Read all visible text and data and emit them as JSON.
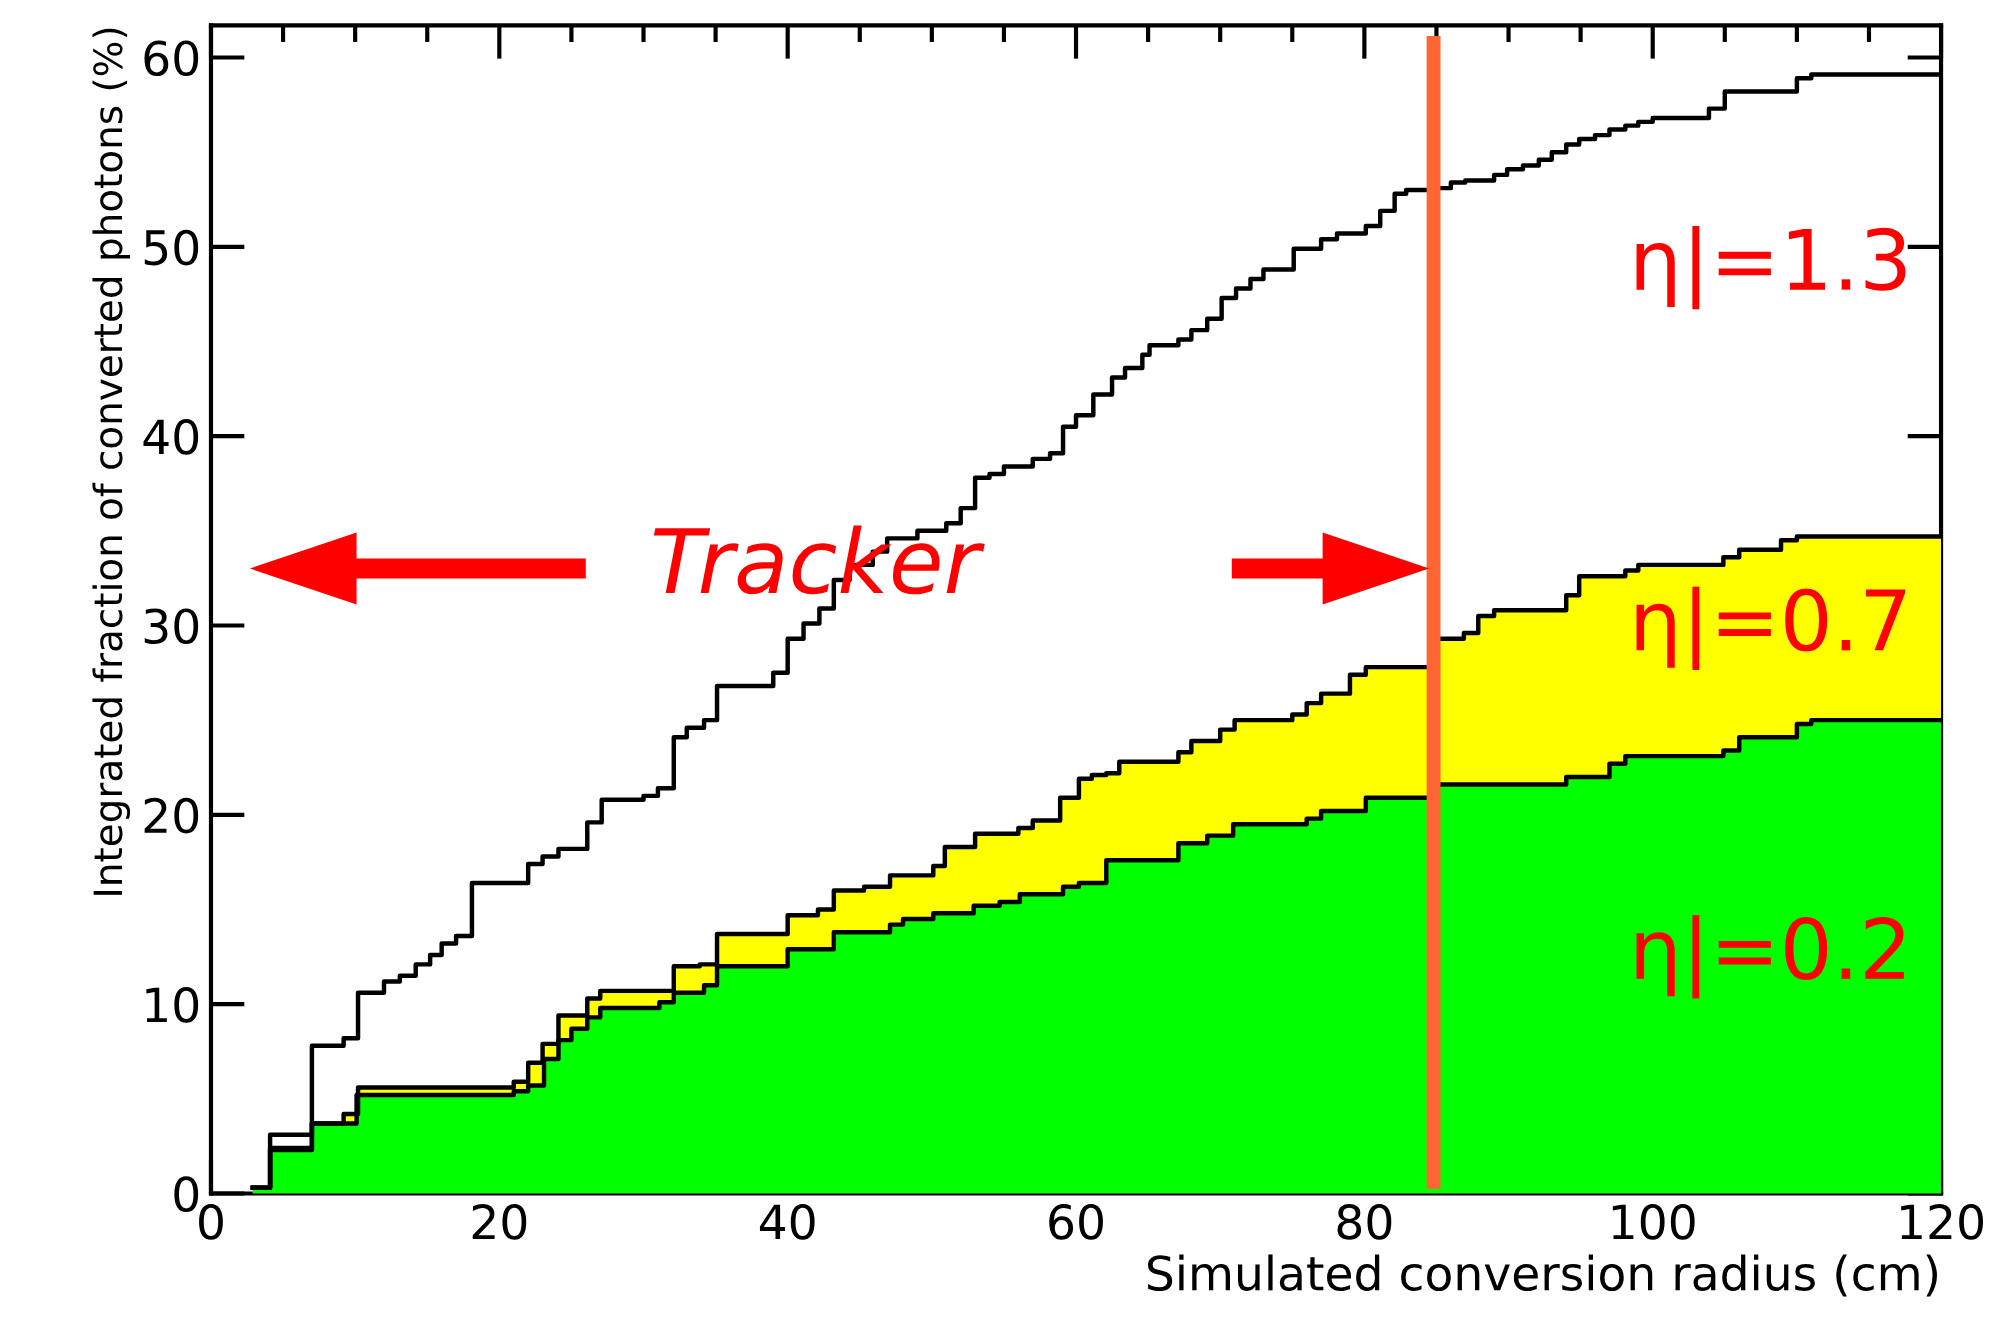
{
  "chart_data": {
    "type": "line",
    "xlabel": "Simulated conversion radius (cm)",
    "ylabel": "Integrated fraction of converted photons (%)",
    "xlim": [
      0,
      120
    ],
    "xticks": [
      0,
      20,
      40,
      60,
      80,
      100,
      120
    ],
    "ylim": [
      0,
      61.7
    ],
    "yticks": [
      0,
      10,
      20,
      30,
      40,
      50,
      60
    ],
    "grid": false,
    "series": [
      {
        "color": "#000000",
        "x": [
          2.9,
          4.1,
          4.1,
          7.0,
          7.0,
          9.2,
          9.2,
          10.2,
          10.2,
          12.0,
          12.0,
          13.1,
          13.1,
          14.2,
          14.2,
          15.2,
          15.2,
          16.0,
          16.0,
          17.0,
          17.0,
          18.1,
          18.1,
          22.0,
          22.0,
          23.0,
          23.0,
          24.1,
          24.1,
          26.1,
          26.1,
          27.1,
          27.1,
          30.0,
          30.0,
          31.0,
          31.0,
          32.1,
          32.1,
          33.0,
          33.0,
          34.2,
          34.2,
          35.1,
          35.1,
          39.0,
          39.0,
          40.0,
          40.0,
          41.1,
          41.1,
          42.2,
          42.2,
          43.2,
          43.2,
          44.3,
          44.3,
          45.9,
          45.9,
          46.9,
          46.9,
          49.0,
          49.0,
          51.0,
          51.0,
          52.0,
          52.0,
          53.0,
          53.0,
          54.0,
          54.0,
          55.0,
          55.0,
          57.0,
          57.0,
          58.2,
          58.2,
          59.1,
          59.1,
          60.0,
          60.0,
          61.2,
          61.2,
          62.5,
          62.5,
          63.4,
          63.4,
          64.6,
          64.6,
          65.1,
          65.1,
          67.1,
          67.1,
          68.0,
          68.0,
          69.1,
          69.1,
          70.1,
          70.1,
          71.1,
          71.1,
          72.1,
          72.1,
          73.0,
          73.0,
          75.1,
          75.1,
          77.0,
          77.0,
          78.1,
          78.1,
          80.1,
          80.1,
          81.1,
          81.1,
          82.1,
          82.1,
          82.9,
          82.9,
          84.8,
          84.8,
          86.0,
          86.0,
          87.0,
          87.0,
          89.0,
          89.0,
          89.9,
          89.9,
          91.0,
          91.0,
          92.1,
          92.1,
          93.0,
          93.0,
          94.0,
          94.0,
          94.9,
          94.9,
          96.0,
          96.0,
          97.0,
          97.0,
          98.1,
          98.1,
          99.0,
          99.0,
          100.0,
          100.0,
          103.9,
          103.9,
          105.0,
          105.0,
          110.0,
          110.0,
          111.0,
          111.0,
          120.0
        ],
        "values": [
          0.3,
          0.3,
          3.1,
          3.1,
          7.8,
          7.8,
          8.2,
          8.2,
          10.6,
          10.6,
          11.2,
          11.2,
          11.5,
          11.5,
          12.1,
          12.1,
          12.6,
          12.6,
          13.2,
          13.2,
          13.6,
          13.6,
          16.4,
          16.4,
          17.4,
          17.4,
          17.8,
          17.8,
          18.2,
          18.2,
          19.6,
          19.6,
          20.8,
          20.8,
          21.0,
          21.0,
          21.4,
          21.4,
          24.1,
          24.1,
          24.6,
          24.6,
          25.0,
          25.0,
          26.8,
          26.8,
          27.5,
          27.5,
          29.3,
          29.3,
          30.1,
          30.1,
          30.9,
          30.9,
          32.4,
          32.4,
          33.2,
          33.2,
          33.9,
          33.9,
          34.6,
          34.6,
          35.0,
          35.0,
          35.4,
          35.4,
          36.2,
          36.2,
          37.8,
          37.8,
          38.0,
          38.0,
          38.4,
          38.4,
          38.8,
          38.8,
          39.1,
          39.1,
          40.5,
          40.5,
          41.1,
          41.1,
          42.2,
          42.2,
          43.1,
          43.1,
          43.6,
          43.6,
          44.3,
          44.3,
          44.8,
          44.8,
          45.1,
          45.1,
          45.6,
          45.6,
          46.2,
          46.2,
          47.3,
          47.3,
          47.8,
          47.8,
          48.3,
          48.3,
          48.8,
          48.8,
          49.9,
          49.9,
          50.4,
          50.4,
          50.7,
          50.7,
          51.1,
          51.1,
          51.9,
          51.9,
          52.8,
          52.8,
          53.0,
          53.0,
          53.1,
          53.1,
          53.4,
          53.4,
          53.5,
          53.5,
          53.8,
          53.8,
          54.1,
          54.1,
          54.3,
          54.3,
          54.6,
          54.6,
          55.0,
          55.0,
          55.4,
          55.4,
          55.7,
          55.7,
          55.9,
          55.9,
          56.2,
          56.2,
          56.4,
          56.4,
          56.6,
          56.6,
          56.8,
          56.8,
          57.3,
          57.3,
          58.2,
          58.2,
          58.9,
          58.9,
          59.1,
          59.1
        ]
      },
      {
        "type": "area",
        "color": "#ffff00",
        "x": [
          2.9,
          4.1,
          4.1,
          7.0,
          7.0,
          9.2,
          9.2,
          10.2,
          10.2,
          21.0,
          21.0,
          22.0,
          22.0,
          23.0,
          23.0,
          24.1,
          24.1,
          26.1,
          26.1,
          27.0,
          27.0,
          32.1,
          32.1,
          33.9,
          33.9,
          35.1,
          35.1,
          40.0,
          40.0,
          42.1,
          42.1,
          43.2,
          43.2,
          45.3,
          45.3,
          47.1,
          47.1,
          50.1,
          50.1,
          50.9,
          50.9,
          53.0,
          53.0,
          56.0,
          56.0,
          57.0,
          57.0,
          58.9,
          58.9,
          60.2,
          60.2,
          61.1,
          61.1,
          62.1,
          62.1,
          63.0,
          63.0,
          67.1,
          67.1,
          68.0,
          68.0,
          70.0,
          70.0,
          71.0,
          71.0,
          75.0,
          75.0,
          76.0,
          76.0,
          77.0,
          77.0,
          79.0,
          79.0,
          80.1,
          80.1,
          84.8,
          84.8,
          86.9,
          86.9,
          87.9,
          87.9,
          89.0,
          89.0,
          94.0,
          94.0,
          94.9,
          94.9,
          98.1,
          98.1,
          99.0,
          99.0,
          104.9,
          104.9,
          106.0,
          106.0,
          108.9,
          108.9,
          110.0,
          110.0,
          120.0
        ],
        "values": [
          0.3,
          0.3,
          2.4,
          2.4,
          3.7,
          3.7,
          4.2,
          4.2,
          5.6,
          5.6,
          5.9,
          5.9,
          6.9,
          6.9,
          7.9,
          7.9,
          9.4,
          9.4,
          10.3,
          10.3,
          10.7,
          10.7,
          12.0,
          12.0,
          12.1,
          12.1,
          13.7,
          13.7,
          14.7,
          14.7,
          15.0,
          15.0,
          16.0,
          16.0,
          16.2,
          16.2,
          16.8,
          16.8,
          17.3,
          17.3,
          18.3,
          18.3,
          19.0,
          19.0,
          19.3,
          19.3,
          19.7,
          19.7,
          20.9,
          20.9,
          21.9,
          21.9,
          22.1,
          22.1,
          22.2,
          22.2,
          22.8,
          22.8,
          23.3,
          23.3,
          23.9,
          23.9,
          24.5,
          24.5,
          25.0,
          25.0,
          25.3,
          25.3,
          25.9,
          25.9,
          26.4,
          26.4,
          27.4,
          27.4,
          27.8,
          27.8,
          29.3,
          29.3,
          29.6,
          29.6,
          30.5,
          30.5,
          30.8,
          30.8,
          31.6,
          31.6,
          32.6,
          32.6,
          32.9,
          32.9,
          33.2,
          33.2,
          33.6,
          33.6,
          34.0,
          34.0,
          34.5,
          34.5,
          34.7,
          34.7
        ]
      },
      {
        "type": "area",
        "color": "#00ff00",
        "x": [
          2.9,
          4.1,
          4.1,
          7.0,
          7.0,
          10.1,
          10.1,
          21.0,
          21.0,
          22.0,
          22.0,
          23.1,
          23.1,
          24.1,
          24.1,
          25.0,
          25.0,
          26.1,
          26.1,
          27.0,
          27.0,
          31.1,
          31.1,
          32.1,
          32.1,
          34.2,
          34.2,
          35.1,
          35.1,
          40.0,
          40.0,
          43.2,
          43.2,
          47.1,
          47.1,
          48.0,
          48.0,
          50.1,
          50.1,
          52.9,
          52.9,
          54.7,
          54.7,
          56.1,
          56.1,
          59.1,
          59.1,
          60.2,
          60.2,
          62.1,
          62.1,
          67.1,
          67.1,
          69.1,
          69.1,
          70.9,
          70.9,
          76.0,
          76.0,
          77.0,
          77.0,
          80.1,
          80.1,
          84.8,
          84.8,
          94.0,
          94.0,
          97.0,
          97.0,
          98.1,
          98.1,
          104.9,
          104.9,
          106.0,
          106.0,
          110.0,
          110.0,
          111.0,
          111.0,
          120.0
        ],
        "values": [
          0.3,
          0.3,
          2.3,
          2.3,
          3.7,
          3.7,
          5.2,
          5.2,
          5.4,
          5.4,
          5.7,
          5.7,
          7.1,
          7.1,
          8.1,
          8.1,
          8.7,
          8.7,
          9.3,
          9.3,
          9.8,
          9.8,
          10.1,
          10.1,
          10.6,
          10.6,
          11.0,
          11.0,
          12.0,
          12.0,
          12.9,
          12.9,
          13.8,
          13.8,
          14.2,
          14.2,
          14.5,
          14.5,
          14.8,
          14.8,
          15.2,
          15.2,
          15.4,
          15.4,
          15.8,
          15.8,
          16.2,
          16.2,
          16.4,
          16.4,
          17.6,
          17.6,
          18.5,
          18.5,
          18.9,
          18.9,
          19.5,
          19.5,
          19.8,
          19.8,
          20.2,
          20.2,
          20.9,
          20.9,
          21.6,
          21.6,
          22.0,
          22.0,
          22.7,
          22.7,
          23.1,
          23.1,
          23.4,
          23.4,
          24.1,
          24.1,
          24.8,
          24.8,
          25.0,
          25.0
        ]
      }
    ],
    "ref_lines": [
      {
        "axis": "x",
        "value": 84.8,
        "color": "#ff6633"
      }
    ],
    "annotations": [
      "η|=1.3",
      "η|=0.7",
      "η|=0.2",
      "Tracker"
    ]
  }
}
